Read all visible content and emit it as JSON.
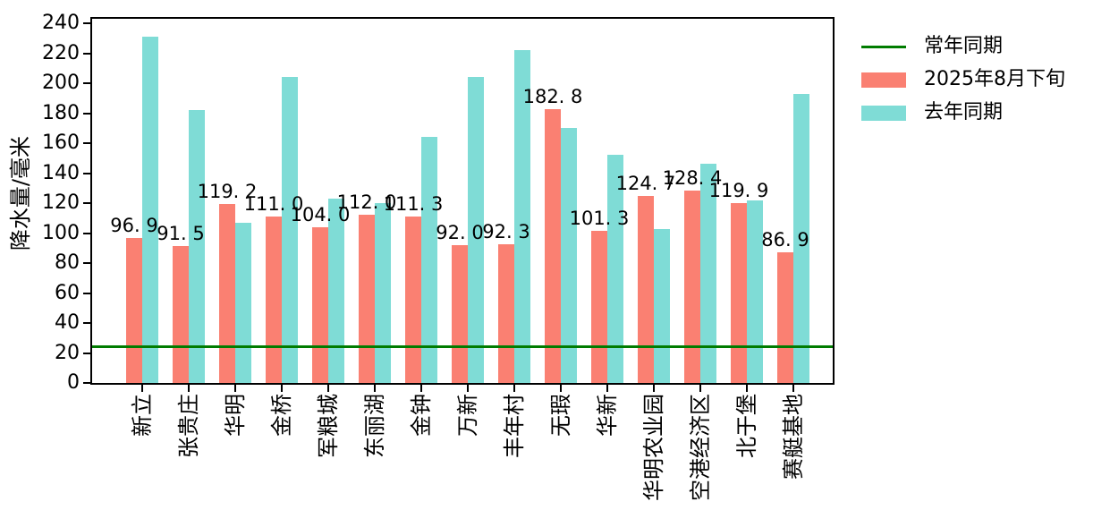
{
  "legend": {
    "items": [
      {
        "label": "常年同期",
        "marker": "line",
        "color": "#007c00"
      },
      {
        "label": "2025年8月下旬",
        "marker": "rect",
        "color": "#fa8072"
      },
      {
        "label": "去年同期",
        "marker": "rect",
        "color": "#7fdcd6"
      }
    ]
  },
  "chart_data": {
    "type": "bar",
    "categories": [
      "新立",
      "张贵庄",
      "华明",
      "金桥",
      "军粮城",
      "东丽湖",
      "金钟",
      "万新",
      "丰年村",
      "无瑕",
      "华新",
      "华明农业园",
      "空港经济区",
      "北于堡",
      "赛艇基地"
    ],
    "series": [
      {
        "name": "2025年8月下旬",
        "color": "#fa8072",
        "values": [
          96.9,
          91.5,
          119.2,
          111.0,
          104.0,
          112.0,
          111.3,
          92.0,
          92.3,
          182.8,
          101.3,
          124.7,
          128.4,
          119.9,
          86.9
        ],
        "value_labels": [
          "96. 9",
          "91. 5",
          "119. 2",
          "111. 0",
          "104. 0",
          "112. 0",
          "111. 3",
          "92. 0",
          "92. 3",
          "182. 8",
          "101. 3",
          "124. 7",
          "128. 4",
          "119. 9",
          "86. 9"
        ]
      },
      {
        "name": "去年同期",
        "color": "#7fdcd6",
        "values": [
          231,
          182,
          107,
          204,
          123,
          120,
          164,
          204,
          222,
          170,
          152,
          103,
          146,
          122,
          193
        ]
      }
    ],
    "reference_line": {
      "name": "常年同期",
      "value": 24,
      "color": "#007c00"
    },
    "ylabel": "降水量/毫米",
    "yticks": [
      0,
      20,
      40,
      60,
      80,
      100,
      120,
      140,
      160,
      180,
      200,
      220,
      240
    ],
    "ylim": [
      0,
      240
    ],
    "grid": false,
    "legend_position": "outside-upper-right"
  }
}
